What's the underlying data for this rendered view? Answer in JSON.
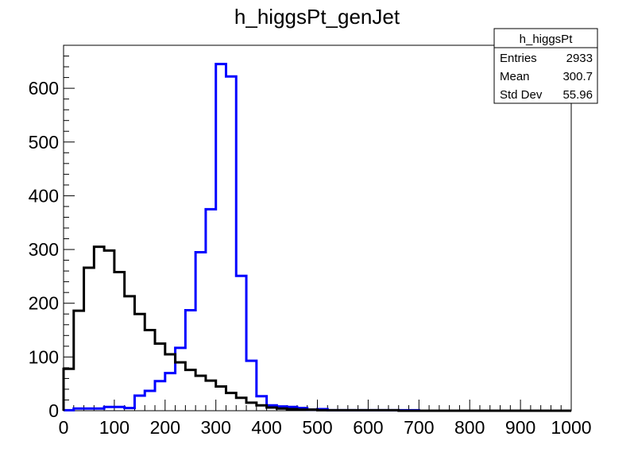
{
  "chart_data": {
    "type": "histogram",
    "title": "h_higgsPt_genJet",
    "xlim": [
      0,
      1000
    ],
    "ylim": [
      0,
      680
    ],
    "bin_width": 20,
    "x_ticks": [
      0,
      100,
      200,
      300,
      400,
      500,
      600,
      700,
      800,
      900,
      1000
    ],
    "y_ticks": [
      0,
      100,
      200,
      300,
      400,
      500,
      600
    ],
    "grid": false,
    "legend": "none",
    "series": [
      {
        "color": "#0000ff",
        "values": [
          1,
          4,
          4,
          4,
          7,
          7,
          5,
          28,
          37,
          55,
          70,
          117,
          187,
          295,
          375,
          645,
          622,
          251,
          93,
          27,
          10,
          8,
          7,
          5,
          2,
          3,
          1,
          1,
          1,
          1,
          1,
          1,
          1,
          1,
          1,
          0,
          0,
          0,
          0,
          0,
          0,
          0,
          0,
          0,
          0,
          0,
          0,
          0,
          0,
          0
        ]
      },
      {
        "color": "#000000",
        "values": [
          78,
          186,
          266,
          305,
          298,
          258,
          213,
          180,
          150,
          125,
          105,
          90,
          76,
          65,
          56,
          45,
          33,
          24,
          15,
          10,
          6,
          4,
          3,
          2,
          2,
          1,
          1,
          1,
          1,
          1,
          1,
          1,
          1,
          0,
          0,
          0,
          0,
          0,
          0,
          0,
          0,
          0,
          0,
          0,
          0,
          0,
          0,
          0,
          0,
          0
        ]
      }
    ]
  },
  "stats_box": {
    "title": "h_higgsPt",
    "rows": [
      {
        "label": "Entries",
        "value": "2933"
      },
      {
        "label": "Mean",
        "value": "300.7"
      },
      {
        "label": "Std Dev",
        "value": "55.96"
      }
    ]
  }
}
